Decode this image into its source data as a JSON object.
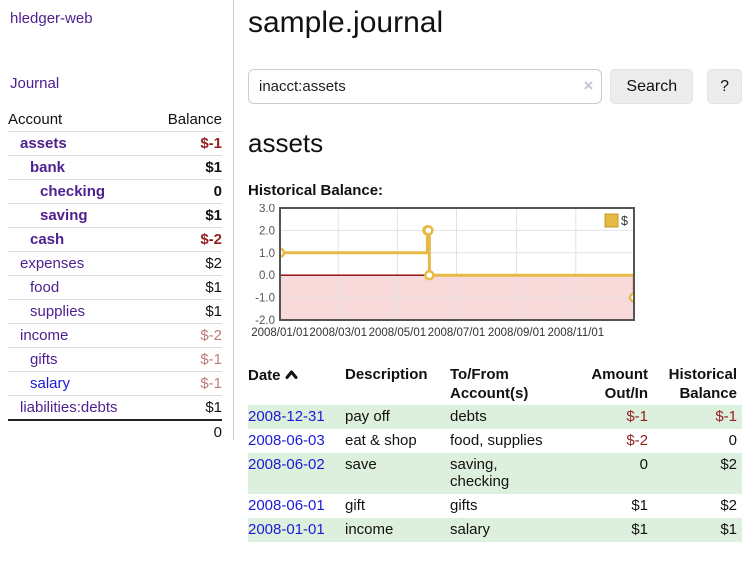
{
  "app": {
    "brand": "hledger-web"
  },
  "colors": {
    "link_purple": "#4f2190",
    "link_blue": "#1b1bd6",
    "negative_strong": "#941f1f",
    "negative_soft": "#c07a7a",
    "row_stripe_green": "#ddefdd"
  },
  "sidebar": {
    "journal_label": "Journal",
    "accounts": {
      "headers": {
        "account": "Account",
        "balance": "Balance"
      },
      "rows": [
        {
          "label": "assets",
          "depth": 0,
          "inacct": true,
          "balance": "$-1"
        },
        {
          "label": "bank",
          "depth": 1,
          "inacct": true,
          "balance": "$1"
        },
        {
          "label": "checking",
          "depth": 2,
          "inacct": true,
          "balance": "0"
        },
        {
          "label": "saving",
          "depth": 2,
          "inacct": true,
          "balance": "$1"
        },
        {
          "label": "cash",
          "depth": 1,
          "inacct": true,
          "balance": "$-2"
        },
        {
          "label": "expenses",
          "depth": 0,
          "inacct": false,
          "balance": "$2"
        },
        {
          "label": "food",
          "depth": 1,
          "inacct": false,
          "balance": "$1"
        },
        {
          "label": "supplies",
          "depth": 1,
          "inacct": false,
          "balance": "$1"
        },
        {
          "label": "income",
          "depth": 0,
          "inacct": false,
          "balance": "$-2"
        },
        {
          "label": "gifts",
          "depth": 1,
          "inacct": false,
          "balance": "$-1"
        },
        {
          "label": "salary",
          "depth": 1,
          "inacct": false,
          "balance": "$-1",
          "unvisited": true
        },
        {
          "label": "liabilities:debts",
          "depth": 0,
          "inacct": false,
          "balance": "$1"
        }
      ],
      "total": "0"
    }
  },
  "header": {
    "title": "sample.journal"
  },
  "search": {
    "value": "inacct:assets",
    "clear_icon_glyph": "×",
    "button_label": "Search",
    "help_label": "?"
  },
  "account_page": {
    "title": "assets",
    "chart_label": "Historical Balance:"
  },
  "chart_data": {
    "type": "line",
    "title": "Historical Balance",
    "step": true,
    "series": [
      {
        "name": "$",
        "x": [
          "2008-01-01",
          "2008-06-01",
          "2008-06-02",
          "2008-06-03",
          "2008-12-31"
        ],
        "values": [
          1,
          2,
          2,
          0,
          -1
        ]
      }
    ],
    "x_range": [
      "2008-01-01",
      "2008-12-31"
    ],
    "ylim": [
      -2,
      3
    ],
    "y_ticks": [
      -2,
      -1,
      0,
      1,
      2,
      3
    ],
    "y_tick_labels": [
      "-2.0",
      "-1.0",
      "0.0",
      "1.0",
      "2.0",
      "3.0"
    ],
    "x_ticks": [
      "2008-01-01",
      "2008-03-01",
      "2008-05-01",
      "2008-07-01",
      "2008-09-01",
      "2008-11-01"
    ],
    "x_tick_labels": [
      "2008/01/01",
      "2008/03/01",
      "2008/05/01",
      "2008/07/01",
      "2008/09/01",
      "2008/11/01"
    ],
    "grid": true,
    "legend_position": "top-right",
    "negative_region_shaded": true,
    "colors": {
      "line": "#e6ba45",
      "marker_fill": "#ffffff",
      "negative_fill": "#f9dada",
      "zero_line": "#8b0000",
      "border": "#545454",
      "grid": "#e2e2e2",
      "y_label": "#555555",
      "x_label": "#333333",
      "legend_swatch_border": "#c09a28"
    }
  },
  "register": {
    "headers": {
      "date": "Date",
      "description": "Description",
      "accounts": "To/From Account(s)",
      "amount": "Amount Out/In",
      "balance": "Historical Balance"
    },
    "rows": [
      {
        "date": "2008-12-31",
        "description": "pay off",
        "accounts": "debts",
        "amount": "$-1",
        "balance": "$-1"
      },
      {
        "date": "2008-06-03",
        "description": "eat & shop",
        "accounts": "food, supplies",
        "amount": "$-2",
        "balance": "0"
      },
      {
        "date": "2008-06-02",
        "description": "save",
        "accounts": "saving, checking",
        "amount": "0",
        "balance": "$2"
      },
      {
        "date": "2008-06-01",
        "description": "gift",
        "accounts": "gifts",
        "amount": "$1",
        "balance": "$2"
      },
      {
        "date": "2008-01-01",
        "description": "income",
        "accounts": "salary",
        "amount": "$1",
        "balance": "$1"
      }
    ]
  }
}
